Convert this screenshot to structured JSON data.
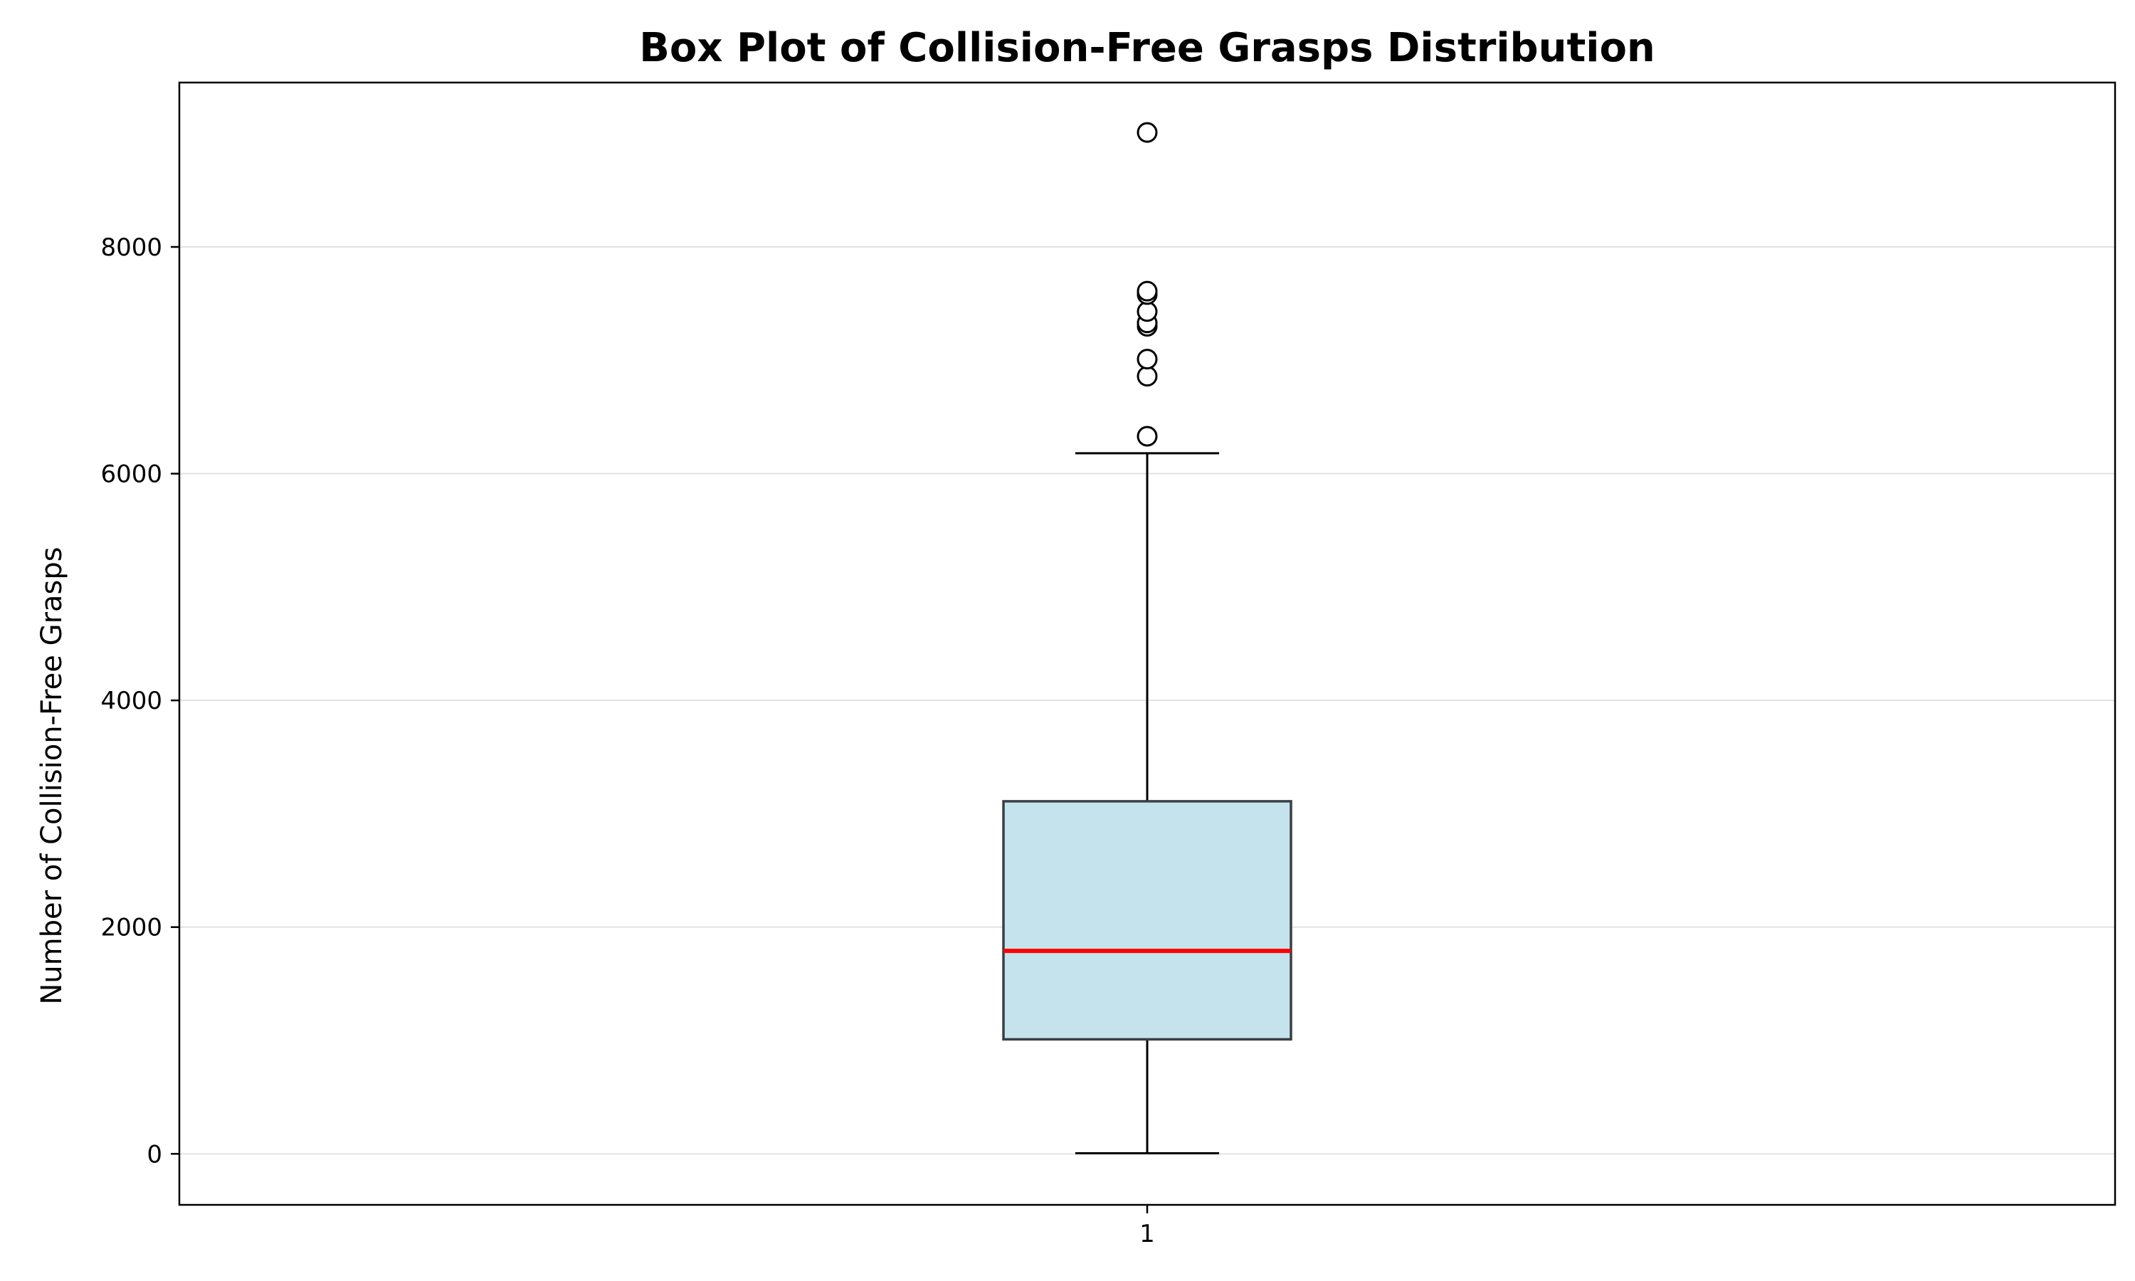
{
  "chart_data": {
    "type": "box",
    "title": "Box Plot of Collision-Free Grasps Distribution",
    "xlabel": "",
    "ylabel": "Number of Collision-Free Grasps",
    "categories": [
      "1"
    ],
    "ylim": [
      -450,
      9450
    ],
    "yticks": [
      0,
      2000,
      4000,
      6000,
      8000
    ],
    "grid": "horizontal",
    "box": {
      "whisker_low": 5,
      "q1": 1010,
      "median": 1790,
      "q3": 3110,
      "whisker_high": 6180
    },
    "outliers": [
      6330,
      6860,
      7010,
      7300,
      7330,
      7430,
      7580,
      7610,
      9010
    ],
    "colors": {
      "box_fill": "#c5e3ed",
      "box_edge": "#3a3f44",
      "median": "#ff0000",
      "grid": "#e2e2e2",
      "axes": "#000000"
    }
  }
}
